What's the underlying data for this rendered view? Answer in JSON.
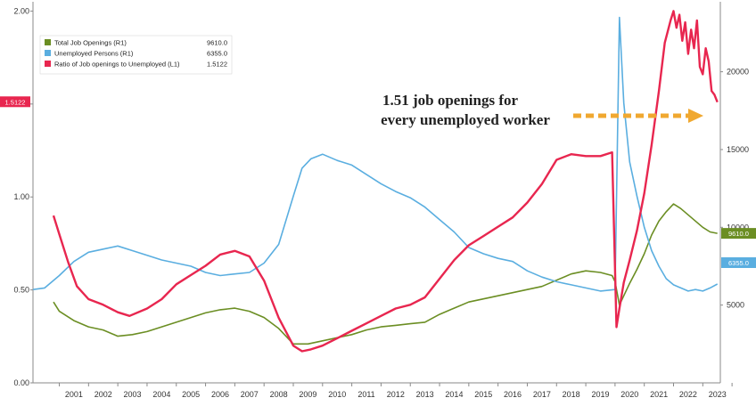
{
  "chart_data": {
    "type": "line",
    "left_axis": {
      "min": 0,
      "max": 2.05,
      "ticks": [
        {
          "v": 0,
          "label": "0.00"
        },
        {
          "v": 0.5,
          "label": "0.50"
        },
        {
          "v": 1.0,
          "label": "1.00"
        },
        {
          "v": 1.5,
          "label": "1.50"
        },
        {
          "v": 2.0,
          "label": "2.00"
        }
      ]
    },
    "right_axis": {
      "min": 0,
      "max": 24500,
      "ticks": [
        {
          "v": 5000,
          "label": "5000"
        },
        {
          "v": 10000,
          "label": "10000"
        },
        {
          "v": 15000,
          "label": "15000"
        },
        {
          "v": 20000,
          "label": "20000"
        }
      ]
    },
    "x_range": [
      2000.1,
      2023.6
    ],
    "x_labels": [
      "2001",
      "2002",
      "2003",
      "2004",
      "2005",
      "2006",
      "2007",
      "2008",
      "2009",
      "2010",
      "2011",
      "2012",
      "2013",
      "2014",
      "2015",
      "2016",
      "2017",
      "2018",
      "2019",
      "2020",
      "2021",
      "2022",
      "2023"
    ],
    "grid": false,
    "legend": {
      "placement": "top-left",
      "items": [
        {
          "label": "Total Job Openings (R1)",
          "value": "9610.0",
          "color": "#6b8e23"
        },
        {
          "label": "Unemployed Persons (R1)",
          "value": "6355.0",
          "color": "#5aaee0"
        },
        {
          "label": "Ratio of Job openings to Unemployed (L1)",
          "value": "1.5122",
          "color": "#e8264f"
        }
      ]
    },
    "badges": [
      {
        "text": "1.5122",
        "axis": "left",
        "value": 1.5122,
        "color": "#e8264f"
      },
      {
        "text": "9610.0",
        "axis": "right",
        "value": 9610,
        "color": "#6b8e23"
      },
      {
        "text": "6355.0",
        "axis": "right",
        "value": 6355,
        "color": "#5aaee0"
      }
    ],
    "annotation": {
      "lines": [
        "1.51 job openings for",
        "every unemployed worker"
      ],
      "arrow_color": "#f0a830"
    },
    "series": [
      {
        "name": "Total Job Openings",
        "axis": "right",
        "color": "#6b8e23",
        "x": [
          2000.8,
          2001.0,
          2001.5,
          2002.0,
          2002.5,
          2003.0,
          2003.5,
          2004.0,
          2004.5,
          2005.0,
          2005.5,
          2006.0,
          2006.5,
          2007.0,
          2007.5,
          2008.0,
          2008.5,
          2009.0,
          2009.5,
          2010.0,
          2010.5,
          2011.0,
          2011.5,
          2012.0,
          2012.5,
          2013.0,
          2013.5,
          2014.0,
          2014.5,
          2015.0,
          2015.5,
          2016.0,
          2016.5,
          2017.0,
          2017.5,
          2018.0,
          2018.5,
          2019.0,
          2019.5,
          2019.9,
          2020.0,
          2020.15,
          2020.3,
          2020.5,
          2020.75,
          2021.0,
          2021.25,
          2021.5,
          2021.75,
          2022.0,
          2022.25,
          2022.5,
          2022.75,
          2023.0,
          2023.25,
          2023.5
        ],
        "y": [
          5200,
          4600,
          4000,
          3600,
          3400,
          3000,
          3100,
          3300,
          3600,
          3900,
          4200,
          4500,
          4700,
          4800,
          4600,
          4200,
          3500,
          2500,
          2500,
          2700,
          2900,
          3100,
          3400,
          3600,
          3700,
          3800,
          3900,
          4400,
          4800,
          5200,
          5400,
          5600,
          5800,
          6000,
          6200,
          6600,
          7000,
          7200,
          7100,
          6900,
          6500,
          5000,
          5600,
          6400,
          7300,
          8300,
          9500,
          10400,
          11000,
          11500,
          11200,
          10800,
          10400,
          10000,
          9700,
          9610
        ]
      },
      {
        "name": "Unemployed Persons",
        "axis": "right",
        "color": "#5aaee0",
        "x": [
          2000.1,
          2000.5,
          2001.0,
          2001.5,
          2002.0,
          2002.5,
          2003.0,
          2003.5,
          2004.0,
          2004.5,
          2005.0,
          2005.5,
          2006.0,
          2006.5,
          2007.0,
          2007.5,
          2008.0,
          2008.5,
          2009.0,
          2009.3,
          2009.6,
          2010.0,
          2010.5,
          2011.0,
          2011.5,
          2012.0,
          2012.5,
          2013.0,
          2013.5,
          2014.0,
          2014.5,
          2015.0,
          2015.5,
          2016.0,
          2016.5,
          2017.0,
          2017.5,
          2018.0,
          2018.5,
          2019.0,
          2019.5,
          2020.0,
          2020.15,
          2020.3,
          2020.5,
          2020.75,
          2021.0,
          2021.25,
          2021.5,
          2021.75,
          2022.0,
          2022.25,
          2022.5,
          2022.75,
          2023.0,
          2023.25,
          2023.5
        ],
        "y": [
          6000,
          6100,
          6900,
          7800,
          8400,
          8600,
          8800,
          8500,
          8200,
          7900,
          7700,
          7500,
          7100,
          6900,
          7000,
          7100,
          7700,
          8900,
          12000,
          13800,
          14400,
          14700,
          14300,
          14000,
          13400,
          12800,
          12300,
          11900,
          11300,
          10500,
          9700,
          8700,
          8300,
          8000,
          7800,
          7200,
          6800,
          6500,
          6300,
          6100,
          5900,
          6000,
          23500,
          18000,
          14200,
          12000,
          10000,
          8500,
          7500,
          6700,
          6300,
          6100,
          5900,
          6000,
          5900,
          6100,
          6355
        ]
      },
      {
        "name": "Ratio of Job openings to Unemployed",
        "axis": "left",
        "color": "#e8264f",
        "x": [
          2000.8,
          2001.0,
          2001.3,
          2001.6,
          2002.0,
          2002.5,
          2003.0,
          2003.4,
          2004.0,
          2004.5,
          2005.0,
          2005.5,
          2006.0,
          2006.5,
          2007.0,
          2007.5,
          2008.0,
          2008.5,
          2009.0,
          2009.3,
          2009.6,
          2010.0,
          2010.5,
          2011.0,
          2011.5,
          2012.0,
          2012.5,
          2013.0,
          2013.5,
          2014.0,
          2014.5,
          2015.0,
          2015.5,
          2016.0,
          2016.5,
          2017.0,
          2017.5,
          2018.0,
          2018.5,
          2019.0,
          2019.5,
          2019.9,
          2020.05,
          2020.15,
          2020.3,
          2020.5,
          2020.75,
          2021.0,
          2021.25,
          2021.5,
          2021.7,
          2021.9,
          2022.0,
          2022.1,
          2022.2,
          2022.3,
          2022.4,
          2022.5,
          2022.6,
          2022.7,
          2022.8,
          2022.9,
          2023.0,
          2023.1,
          2023.2,
          2023.3,
          2023.4,
          2023.5
        ],
        "y": [
          0.9,
          0.8,
          0.65,
          0.52,
          0.45,
          0.42,
          0.38,
          0.36,
          0.4,
          0.45,
          0.53,
          0.58,
          0.63,
          0.69,
          0.71,
          0.68,
          0.55,
          0.35,
          0.2,
          0.17,
          0.18,
          0.2,
          0.24,
          0.28,
          0.32,
          0.36,
          0.4,
          0.42,
          0.46,
          0.56,
          0.66,
          0.74,
          0.79,
          0.84,
          0.89,
          0.97,
          1.07,
          1.2,
          1.23,
          1.22,
          1.22,
          1.24,
          0.3,
          0.4,
          0.54,
          0.66,
          0.82,
          1.02,
          1.28,
          1.57,
          1.83,
          1.95,
          2.0,
          1.91,
          1.98,
          1.84,
          1.94,
          1.77,
          1.9,
          1.8,
          1.95,
          1.7,
          1.66,
          1.8,
          1.73,
          1.57,
          1.55,
          1.51
        ]
      }
    ]
  }
}
